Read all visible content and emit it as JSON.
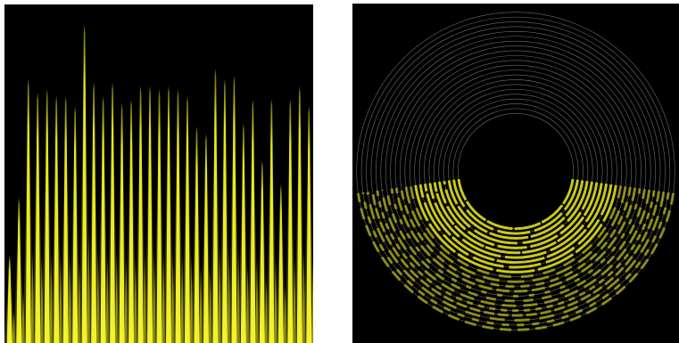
{
  "colors": {
    "background": "#ffffff",
    "panel_background": "#000000",
    "signal_color": "#e6e61a",
    "signal_dim": "#6b6b10",
    "ring_outline": "#8a8a8a"
  },
  "left_panel": {
    "peak_levels": [
      0.26,
      0.43,
      0.78,
      0.74,
      0.75,
      0.73,
      0.73,
      0.7,
      0.94,
      0.77,
      0.73,
      0.77,
      0.71,
      0.72,
      0.76,
      0.76,
      0.75,
      0.76,
      0.75,
      0.73,
      0.64,
      0.62,
      0.81,
      0.78,
      0.79,
      0.65,
      0.72,
      0.54,
      0.72,
      0.47,
      0.72,
      0.76,
      0.7
    ]
  },
  "right_panel": {
    "ring_count": 22
  }
}
